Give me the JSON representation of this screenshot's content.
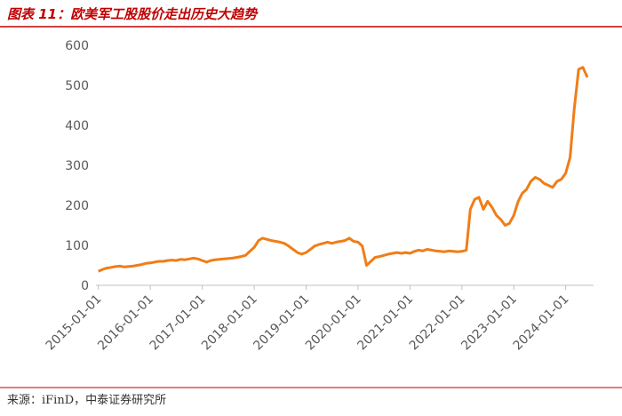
{
  "header": {
    "title": "图表 11：欧美军工股股价走出历史大趋势"
  },
  "chart_data": {
    "type": "line",
    "color": "#f07d17",
    "grid": false,
    "x": [
      "2015-01-01",
      "2015-02-01",
      "2015-03-01",
      "2015-04-01",
      "2015-05-01",
      "2015-06-01",
      "2015-07-01",
      "2015-08-01",
      "2015-09-01",
      "2015-10-01",
      "2015-11-01",
      "2015-12-01",
      "2016-01-01",
      "2016-02-01",
      "2016-03-01",
      "2016-04-01",
      "2016-05-01",
      "2016-06-01",
      "2016-07-01",
      "2016-08-01",
      "2016-09-01",
      "2016-10-01",
      "2016-11-01",
      "2016-12-01",
      "2017-01-01",
      "2017-02-01",
      "2017-03-01",
      "2017-04-01",
      "2017-05-01",
      "2017-06-01",
      "2017-07-01",
      "2017-08-01",
      "2017-09-01",
      "2017-10-01",
      "2017-11-01",
      "2017-12-01",
      "2018-01-01",
      "2018-02-01",
      "2018-03-01",
      "2018-04-01",
      "2018-05-01",
      "2018-06-01",
      "2018-07-01",
      "2018-08-01",
      "2018-09-01",
      "2018-10-01",
      "2018-11-01",
      "2018-12-01",
      "2019-01-01",
      "2019-02-01",
      "2019-03-01",
      "2019-04-01",
      "2019-05-01",
      "2019-06-01",
      "2019-07-01",
      "2019-08-01",
      "2019-09-01",
      "2019-10-01",
      "2019-11-01",
      "2019-12-01",
      "2020-01-01",
      "2020-02-01",
      "2020-03-01",
      "2020-04-01",
      "2020-05-01",
      "2020-06-01",
      "2020-07-01",
      "2020-08-01",
      "2020-09-01",
      "2020-10-01",
      "2020-11-01",
      "2020-12-01",
      "2021-01-01",
      "2021-02-01",
      "2021-03-01",
      "2021-04-01",
      "2021-05-01",
      "2021-06-01",
      "2021-07-01",
      "2021-08-01",
      "2021-09-01",
      "2021-10-01",
      "2021-11-01",
      "2021-12-01",
      "2022-01-01",
      "2022-02-01",
      "2022-03-01",
      "2022-04-01",
      "2022-05-01",
      "2022-06-01",
      "2022-07-01",
      "2022-08-01",
      "2022-09-01",
      "2022-10-01",
      "2022-11-01",
      "2022-12-01",
      "2023-01-01",
      "2023-02-01",
      "2023-03-01",
      "2023-04-01",
      "2023-05-01",
      "2023-06-01",
      "2023-07-01",
      "2023-08-01",
      "2023-09-01",
      "2023-10-01",
      "2023-11-01",
      "2023-12-01",
      "2024-01-01",
      "2024-02-01",
      "2024-03-01",
      "2024-04-01",
      "2024-05-01",
      "2024-06-01"
    ],
    "values": [
      35,
      40,
      43,
      45,
      47,
      48,
      46,
      47,
      48,
      50,
      52,
      55,
      56,
      58,
      60,
      60,
      62,
      63,
      62,
      65,
      64,
      66,
      68,
      66,
      62,
      58,
      62,
      64,
      65,
      66,
      67,
      68,
      70,
      72,
      75,
      85,
      95,
      112,
      118,
      115,
      112,
      110,
      108,
      105,
      98,
      90,
      82,
      78,
      82,
      90,
      98,
      102,
      105,
      108,
      105,
      108,
      110,
      112,
      118,
      110,
      108,
      98,
      50,
      60,
      70,
      72,
      75,
      78,
      80,
      82,
      80,
      82,
      80,
      85,
      88,
      86,
      90,
      88,
      86,
      85,
      84,
      86,
      85,
      84,
      85,
      88,
      190,
      215,
      220,
      190,
      210,
      195,
      175,
      165,
      150,
      155,
      175,
      210,
      230,
      240,
      260,
      270,
      265,
      255,
      250,
      245,
      260,
      265,
      280,
      320,
      440,
      540,
      545,
      520
    ],
    "xlim": [
      "2014-12-15",
      "2024-07-15"
    ],
    "xticks": [
      "2015-01-01",
      "2016-01-01",
      "2017-01-01",
      "2018-01-01",
      "2019-01-01",
      "2020-01-01",
      "2021-01-01",
      "2022-01-01",
      "2023-01-01",
      "2024-01-01"
    ],
    "ylim": [
      0,
      600
    ],
    "yticks": [
      0,
      100,
      200,
      300,
      400,
      500,
      600
    ]
  },
  "footer": {
    "source": "来源：iFinD，中泰证券研究所"
  }
}
